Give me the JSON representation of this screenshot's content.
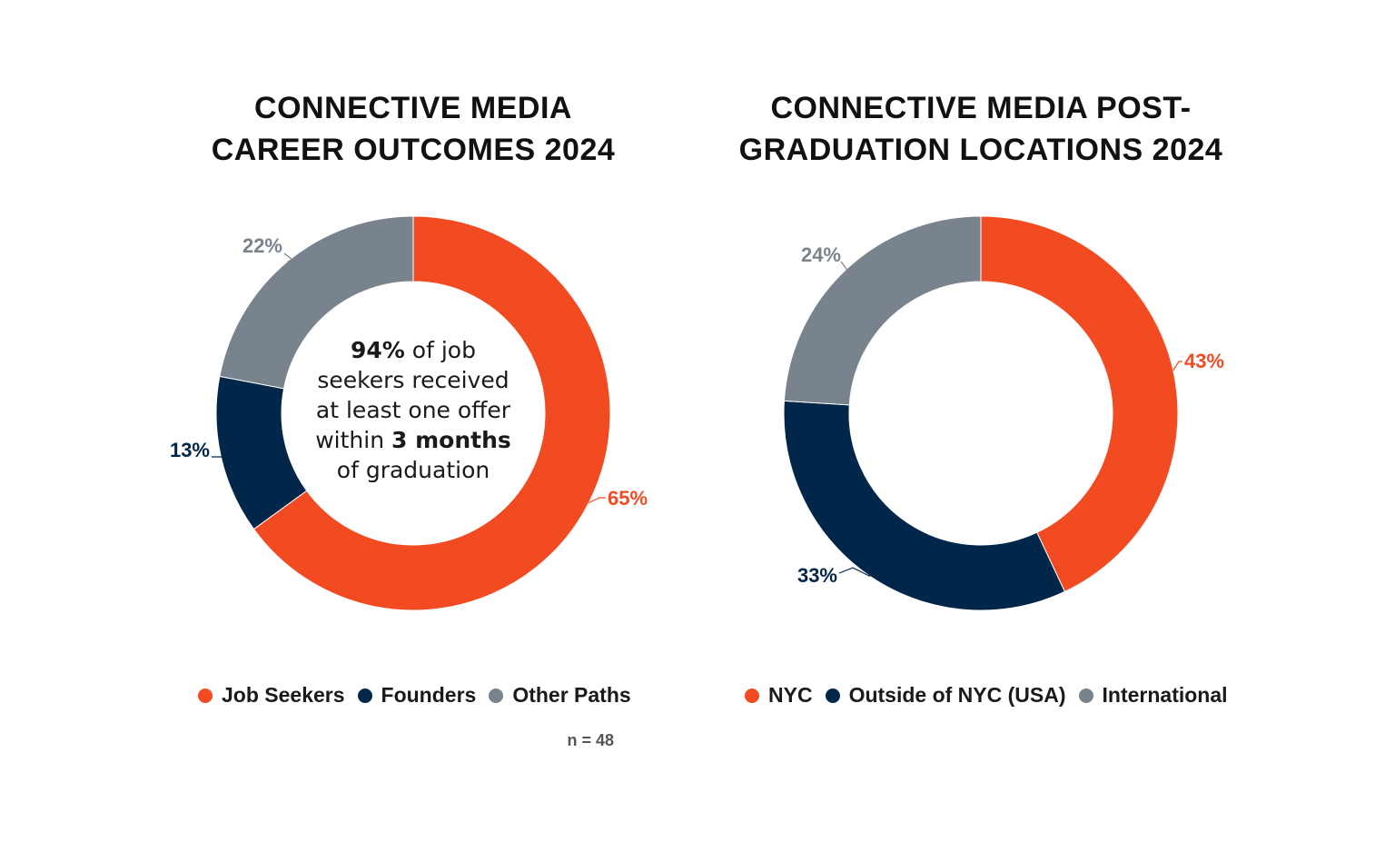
{
  "chart_data": [
    {
      "type": "pie",
      "title_lines": [
        "CONNECTIVE MEDIA",
        "CAREER OUTCOMES 2024"
      ],
      "categories": [
        "Job Seekers",
        "Founders",
        "Other Paths"
      ],
      "values": [
        65,
        13,
        22
      ],
      "data_labels": [
        "65%",
        "13%",
        "22%"
      ],
      "colors": [
        "#F24B22",
        "#00264A",
        "#78838E"
      ],
      "legend_placement": "bottom",
      "center_text": {
        "line1_bold": "94%",
        "line1_rest": " of job",
        "line2": "seekers received",
        "line3": "at least one offer",
        "line4_pre": "within ",
        "line4_bold": "3 months",
        "line5": "of graduation"
      },
      "note": "n = 48"
    },
    {
      "type": "pie",
      "title_lines": [
        "CONNECTIVE MEDIA POST-",
        "GRADUATION LOCATIONS 2024"
      ],
      "categories": [
        "NYC",
        "Outside of NYC (USA)",
        "International"
      ],
      "values": [
        43,
        33,
        24
      ],
      "data_labels": [
        "43%",
        "33%",
        "24%"
      ],
      "colors": [
        "#F24B22",
        "#00264A",
        "#78838E"
      ],
      "legend_placement": "bottom"
    }
  ]
}
